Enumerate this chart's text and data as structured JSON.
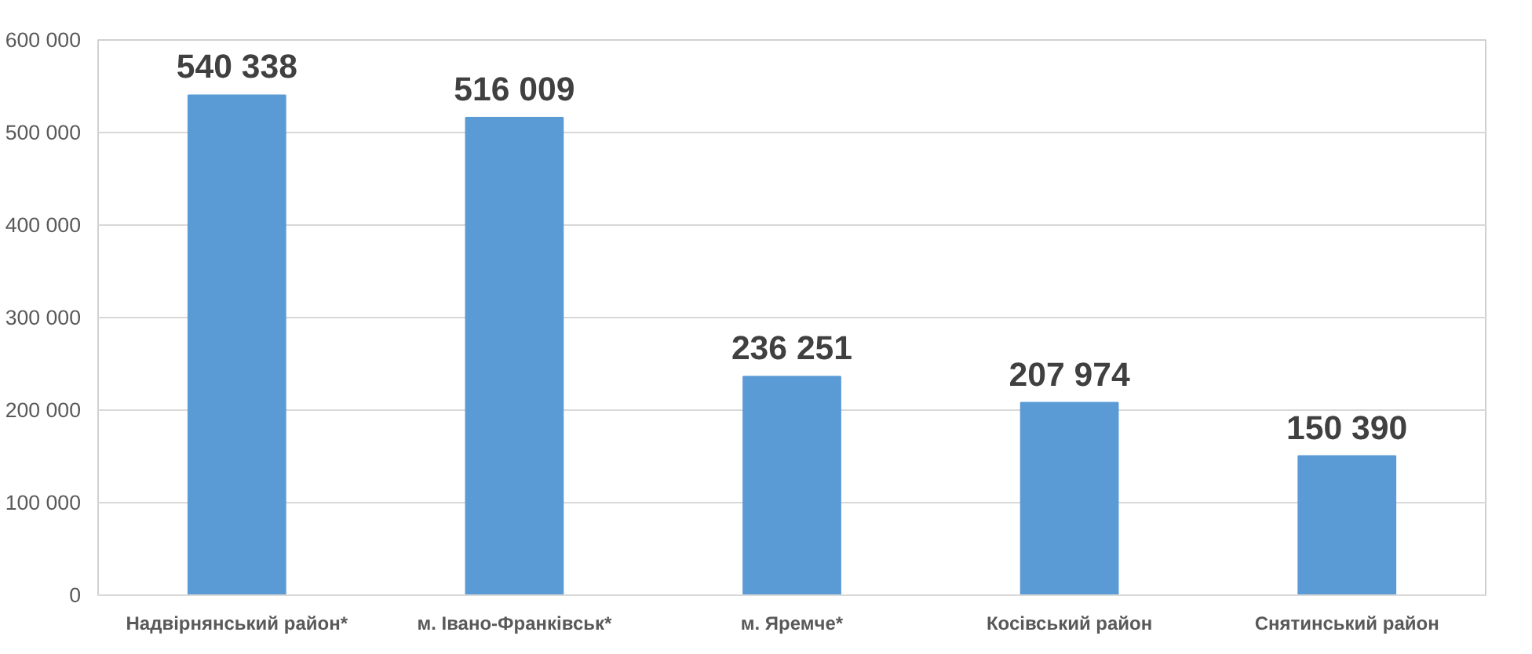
{
  "chart_data": {
    "type": "bar",
    "categories": [
      "Надвірнянський район*",
      "м. Івано-Франківськ*",
      "м. Яремче*",
      "Косівський район",
      "Снятинський район"
    ],
    "values": [
      540338,
      516009,
      236251,
      207974,
      150390
    ],
    "value_labels": [
      "540 338",
      "516 009",
      "236 251",
      "207 974",
      "150 390"
    ],
    "color": "#5b9bd5",
    "ylim": [
      0,
      600000
    ],
    "yticks": [
      {
        "value": 0,
        "label": "0"
      },
      {
        "value": 100000,
        "label": "100 000"
      },
      {
        "value": 200000,
        "label": "200 000"
      },
      {
        "value": 300000,
        "label": "300 000"
      },
      {
        "value": 400000,
        "label": "400 000"
      },
      {
        "value": 500000,
        "label": "500 000"
      },
      {
        "value": 600000,
        "label": "600 000"
      }
    ],
    "grid": "y"
  }
}
